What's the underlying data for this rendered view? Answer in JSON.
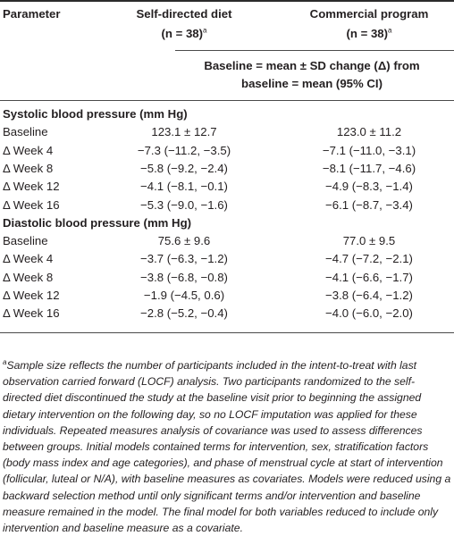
{
  "header": {
    "parameter": "Parameter",
    "col_self": "Self-directed diet",
    "col_self_n": "(n = 38)",
    "col_comm": "Commercial program",
    "col_comm_n": "(n = 38)",
    "sup_mark": "a",
    "subheader_line1": "Baseline = mean ± SD change (Δ) from",
    "subheader_line2": "baseline = mean (95% CI)"
  },
  "sections": [
    {
      "title": "Systolic blood pressure (mm Hg)",
      "rows": [
        {
          "label": "Baseline",
          "self": "123.1 ± 12.7",
          "comm": "123.0 ± 11.2"
        },
        {
          "label": "Δ Week 4",
          "self": "−7.3 (−11.2, −3.5)",
          "comm": "−7.1 (−11.0, −3.1)"
        },
        {
          "label": "Δ Week 8",
          "self": "−5.8 (−9.2, −2.4)",
          "comm": "−8.1 (−11.7, −4.6)"
        },
        {
          "label": "Δ Week 12",
          "self": "−4.1 (−8.1, −0.1)",
          "comm": "−4.9 (−8.3, −1.4)"
        },
        {
          "label": "Δ Week 16",
          "self": "−5.3 (−9.0, −1.6)",
          "comm": "−6.1 (−8.7, −3.4)"
        }
      ]
    },
    {
      "title": "Diastolic blood pressure (mm Hg)",
      "rows": [
        {
          "label": "Baseline",
          "self": "75.6 ± 9.6",
          "comm": "77.0 ± 9.5"
        },
        {
          "label": "Δ Week 4",
          "self": "−3.7 (−6.3, −1.2)",
          "comm": "−4.7 (−7.2, −2.1)"
        },
        {
          "label": "Δ Week 8",
          "self": "−3.8 (−6.8, −0.8)",
          "comm": "−4.1 (−6.6, −1.7)"
        },
        {
          "label": "Δ Week 12",
          "self": "−1.9 (−4.5, 0.6)",
          "comm": "−3.8 (−6.4, −1.2)"
        },
        {
          "label": "Δ Week 16",
          "self": "−2.8 (−5.2, −0.4)",
          "comm": "−4.0 (−6.0, −2.0)"
        }
      ]
    }
  ],
  "footnote": {
    "marker": "a",
    "text": "Sample size reflects the number of participants included in the intent-to-treat with last observation carried forward (LOCF) analysis. Two participants randomized to the self-directed diet discontinued the study at the baseline visit prior to beginning the assigned dietary intervention on the following day, so no LOCF imputation was applied for these individuals. Repeated measures analysis of covariance was used to assess differences between groups. Initial models contained terms for intervention, sex, stratification factors (body mass index and age categories), and phase of menstrual cycle at start of intervention (follicular, luteal or N/A), with baseline measures as covariates. Models were reduced using a backward selection method until only significant terms and/or intervention and baseline measure remained in the model. The final model for both variables reduced to include only intervention and baseline measure as a covariate."
  }
}
